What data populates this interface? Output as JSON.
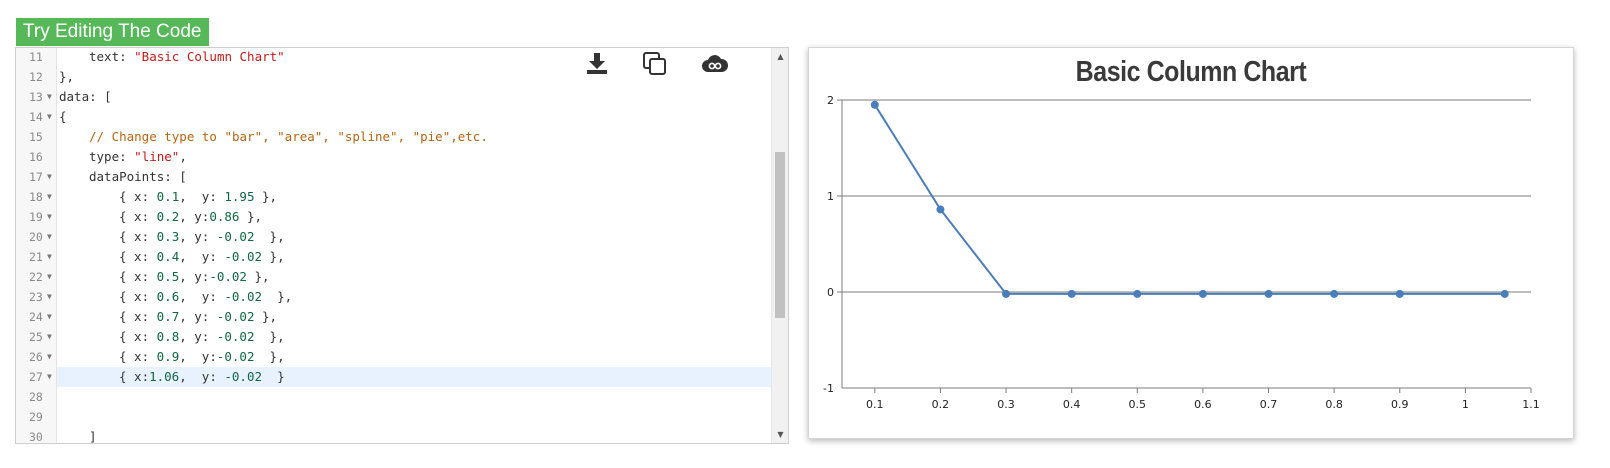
{
  "try_button": {
    "label": "Try Editing The Code"
  },
  "toolbar": {
    "download_icon": "download-icon",
    "copy_icon": "copy-icon",
    "cloud_icon": "cloud-icon"
  },
  "editor": {
    "lines": [
      {
        "number": "11",
        "fold": "",
        "tokens": [
          {
            "t": "text: ",
            "c": "p"
          },
          {
            "t": "\"Basic Column Chart\"",
            "c": "s"
          }
        ],
        "indent": 8
      },
      {
        "number": "12",
        "fold": "",
        "tokens": [
          {
            "t": "},",
            "c": "p"
          }
        ],
        "indent": 4
      },
      {
        "number": "13",
        "fold": "▼",
        "tokens": [
          {
            "t": "data: [",
            "c": "p"
          }
        ],
        "indent": 4
      },
      {
        "number": "14",
        "fold": "▼",
        "tokens": [
          {
            "t": "{",
            "c": "p"
          }
        ],
        "indent": 4
      },
      {
        "number": "15",
        "fold": "",
        "tokens": [
          {
            "t": "// Change type to \"bar\", \"area\", \"spline\", \"pie\",etc.",
            "c": "c"
          }
        ],
        "indent": 8
      },
      {
        "number": "16",
        "fold": "",
        "tokens": [
          {
            "t": "type: ",
            "c": "p"
          },
          {
            "t": "\"line\"",
            "c": "s"
          },
          {
            "t": ",",
            "c": "p"
          }
        ],
        "indent": 8
      },
      {
        "number": "17",
        "fold": "▼",
        "tokens": [
          {
            "t": "dataPoints: [",
            "c": "p"
          }
        ],
        "indent": 8
      },
      {
        "number": "18",
        "fold": "▼",
        "tokens": [
          {
            "t": "{ x: ",
            "c": "p"
          },
          {
            "t": "0.1",
            "c": "n"
          },
          {
            "t": ",  y: ",
            "c": "p"
          },
          {
            "t": "1.95",
            "c": "n"
          },
          {
            "t": " },",
            "c": "p"
          }
        ],
        "indent": 12
      },
      {
        "number": "19",
        "fold": "▼",
        "tokens": [
          {
            "t": "{ x: ",
            "c": "p"
          },
          {
            "t": "0.2",
            "c": "n"
          },
          {
            "t": ", y:",
            "c": "p"
          },
          {
            "t": "0.86",
            "c": "n"
          },
          {
            "t": " },",
            "c": "p"
          }
        ],
        "indent": 12
      },
      {
        "number": "20",
        "fold": "▼",
        "tokens": [
          {
            "t": "{ x: ",
            "c": "p"
          },
          {
            "t": "0.3",
            "c": "n"
          },
          {
            "t": ", y: ",
            "c": "p"
          },
          {
            "t": "-0.02",
            "c": "n"
          },
          {
            "t": "  },",
            "c": "p"
          }
        ],
        "indent": 12
      },
      {
        "number": "21",
        "fold": "▼",
        "tokens": [
          {
            "t": "{ x: ",
            "c": "p"
          },
          {
            "t": "0.4",
            "c": "n"
          },
          {
            "t": ",  y: ",
            "c": "p"
          },
          {
            "t": "-0.02",
            "c": "n"
          },
          {
            "t": " },",
            "c": "p"
          }
        ],
        "indent": 12
      },
      {
        "number": "22",
        "fold": "▼",
        "tokens": [
          {
            "t": "{ x: ",
            "c": "p"
          },
          {
            "t": "0.5",
            "c": "n"
          },
          {
            "t": ", y:",
            "c": "p"
          },
          {
            "t": "-0.02",
            "c": "n"
          },
          {
            "t": " },",
            "c": "p"
          }
        ],
        "indent": 12
      },
      {
        "number": "23",
        "fold": "▼",
        "tokens": [
          {
            "t": "{ x: ",
            "c": "p"
          },
          {
            "t": "0.6",
            "c": "n"
          },
          {
            "t": ",  y: ",
            "c": "p"
          },
          {
            "t": "-0.02",
            "c": "n"
          },
          {
            "t": "  },",
            "c": "p"
          }
        ],
        "indent": 12
      },
      {
        "number": "24",
        "fold": "▼",
        "tokens": [
          {
            "t": "{ x: ",
            "c": "p"
          },
          {
            "t": "0.7",
            "c": "n"
          },
          {
            "t": ", y: ",
            "c": "p"
          },
          {
            "t": "-0.02",
            "c": "n"
          },
          {
            "t": " },",
            "c": "p"
          }
        ],
        "indent": 12
      },
      {
        "number": "25",
        "fold": "▼",
        "tokens": [
          {
            "t": "{ x: ",
            "c": "p"
          },
          {
            "t": "0.8",
            "c": "n"
          },
          {
            "t": ", y: ",
            "c": "p"
          },
          {
            "t": "-0.02",
            "c": "n"
          },
          {
            "t": "  },",
            "c": "p"
          }
        ],
        "indent": 12
      },
      {
        "number": "26",
        "fold": "▼",
        "tokens": [
          {
            "t": "{ x: ",
            "c": "p"
          },
          {
            "t": "0.9",
            "c": "n"
          },
          {
            "t": ",  y:",
            "c": "p"
          },
          {
            "t": "-0.02",
            "c": "n"
          },
          {
            "t": "  },",
            "c": "p"
          }
        ],
        "indent": 12
      },
      {
        "number": "27",
        "fold": "▼",
        "tokens": [
          {
            "t": "{ x:",
            "c": "p"
          },
          {
            "t": "1.06",
            "c": "n"
          },
          {
            "t": ",  y: ",
            "c": "p"
          },
          {
            "t": "-0.02",
            "c": "n"
          },
          {
            "t": "  }",
            "c": "p"
          }
        ],
        "indent": 12,
        "active": true
      },
      {
        "number": "28",
        "fold": "",
        "tokens": [],
        "indent": 0
      },
      {
        "number": "29",
        "fold": "",
        "tokens": [],
        "indent": 0
      },
      {
        "number": "30",
        "fold": "",
        "tokens": [
          {
            "t": "]",
            "c": "p"
          }
        ],
        "indent": 8
      }
    ]
  },
  "chart_data": {
    "type": "line",
    "title": "Basic Column Chart",
    "xlabel": "",
    "ylabel": "",
    "x": [
      0.1,
      0.2,
      0.3,
      0.4,
      0.5,
      0.6,
      0.7,
      0.8,
      0.9,
      1.06
    ],
    "series": [
      {
        "values": [
          1.95,
          0.86,
          -0.02,
          -0.02,
          -0.02,
          -0.02,
          -0.02,
          -0.02,
          -0.02,
          -0.02
        ]
      }
    ],
    "xlim": [
      0.05,
      1.1
    ],
    "ylim": [
      -1,
      2
    ],
    "xticks": [
      "0.1",
      "0.2",
      "0.3",
      "0.4",
      "0.5",
      "0.6",
      "0.7",
      "0.8",
      "0.9",
      "1",
      "1.1"
    ],
    "yticks": [
      "-1",
      "0",
      "1",
      "2"
    ],
    "grid": true,
    "line_color": "#4a7ebb"
  }
}
